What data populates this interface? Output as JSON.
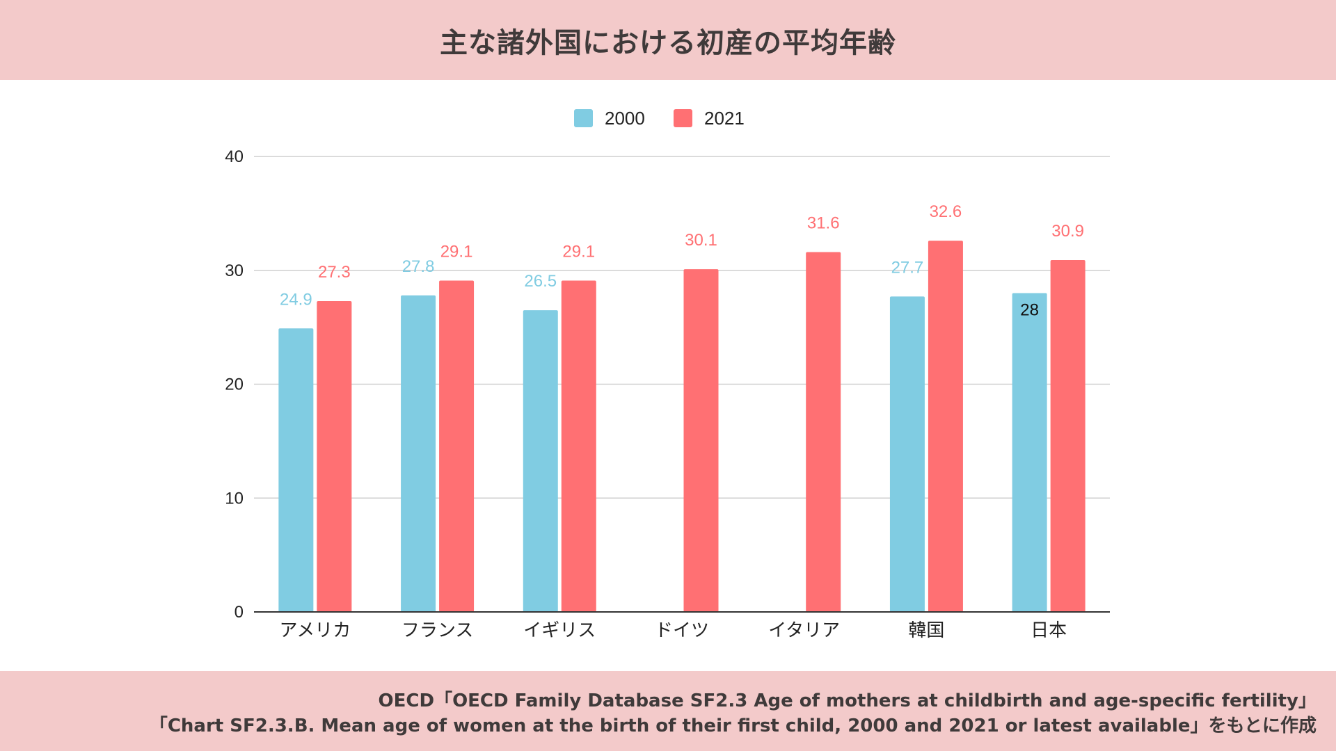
{
  "header": {
    "title": "主な諸外国における初産の平均年齢"
  },
  "footer": {
    "source_line1": "OECD「OECD Family Database SF2.3 Age of mothers at childbirth and age-specific fertility」",
    "source_line2": "「Chart SF2.3.B. Mean age of women at the birth of their first child, 2000 and 2021 or latest available」をもとに作成"
  },
  "colors": {
    "band": "#f3caca",
    "series_2000": "#80cce2",
    "series_2021": "#ff7073",
    "grid": "#cfcfcf",
    "axis": "#333333"
  },
  "chart_data": {
    "type": "bar",
    "title": "主な諸外国における初産の平均年齢",
    "xlabel": "",
    "ylabel": "",
    "ylim": [
      0,
      40
    ],
    "yticks": [
      0,
      10,
      20,
      30,
      40
    ],
    "grid": true,
    "legend_position": "top-center",
    "categories": [
      "アメリカ",
      "フランス",
      "イギリス",
      "ドイツ",
      "イタリア",
      "韓国",
      "日本"
    ],
    "series": [
      {
        "name": "2000",
        "color": "#80cce2",
        "values": [
          24.9,
          27.8,
          26.5,
          null,
          null,
          27.7,
          28
        ],
        "labels": [
          "24.9",
          "27.8",
          "26.5",
          "",
          "",
          "27.7",
          "28"
        ]
      },
      {
        "name": "2021",
        "color": "#ff7073",
        "values": [
          27.3,
          29.1,
          29.1,
          30.1,
          31.6,
          32.6,
          30.9
        ],
        "labels": [
          "27.3",
          "29.1",
          "29.1",
          "30.1",
          "31.6",
          "32.6",
          "30.9"
        ]
      }
    ]
  }
}
